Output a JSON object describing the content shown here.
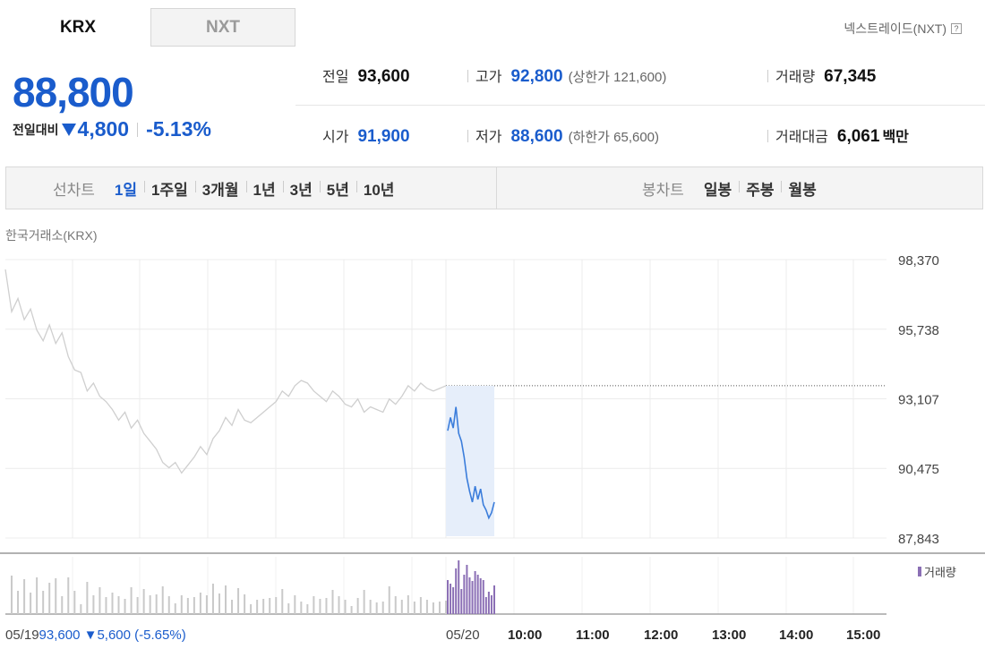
{
  "tabs": [
    {
      "label": "KRX",
      "active": true
    },
    {
      "label": "NXT",
      "active": false
    }
  ],
  "nxt_link": {
    "label": "넥스트레이드(NXT)",
    "help_icon": "help-icon"
  },
  "price": {
    "current": "88,800",
    "change_label": "전일대비",
    "change_value": "4,800",
    "change_pct": "-5.13%",
    "direction": "down"
  },
  "stats": {
    "prev_close": {
      "label": "전일",
      "value": "93,600"
    },
    "high": {
      "label": "고가",
      "value": "92,800",
      "extra": "(상한가 121,600)"
    },
    "volume": {
      "label": "거래량",
      "value": "67,345"
    },
    "open": {
      "label": "시가",
      "value": "91,900"
    },
    "low": {
      "label": "저가",
      "value": "88,600",
      "extra": "(하한가 65,600)"
    },
    "trade_amount": {
      "label": "거래대금",
      "value": "6,061",
      "unit": "백만"
    }
  },
  "toolbar": {
    "line_chart": {
      "title": "선차트",
      "items": [
        "1일",
        "1주일",
        "3개월",
        "1년",
        "3년",
        "5년",
        "10년"
      ],
      "active": "1일"
    },
    "candle_chart": {
      "title": "봉차트",
      "items": [
        "일봉",
        "주봉",
        "월봉"
      ]
    }
  },
  "exchange_label": "한국거래소(KRX)",
  "colors": {
    "blue": "#1a5ccc",
    "line_today": "#3b7ddb",
    "line_prev": "#cfcfcf",
    "volume_today": "#8b6fb5",
    "volume_prev": "#c9c9c9",
    "fill_today": "#e6eefa"
  },
  "chart_data": {
    "type": "line",
    "y_ticks": [
      "98,370",
      "95,738",
      "93,107",
      "90,475",
      "87,843"
    ],
    "ylim": [
      87843,
      98370
    ],
    "reference_price": 93600,
    "x_ticks": [
      "05/19",
      "05/20",
      "10:00",
      "11:00",
      "12:00",
      "13:00",
      "14:00",
      "15:00"
    ],
    "prev_day_footer": {
      "close": "93,600",
      "change": "5,600",
      "change_pct": "(-5.65%)",
      "direction": "down"
    },
    "legend": "거래량",
    "grid": true,
    "series": [
      {
        "date": "05/19",
        "values": [
          98000,
          96400,
          96900,
          96100,
          96500,
          95700,
          95300,
          95900,
          95200,
          95600,
          94700,
          94200,
          94100,
          93400,
          93700,
          93200,
          93000,
          92700,
          92300,
          92600,
          92000,
          92300,
          91800,
          91500,
          91200,
          90700,
          90500,
          90700,
          90300,
          90600,
          90900,
          91300,
          91000,
          91600,
          91900,
          92400,
          92100,
          92700,
          92300,
          92200,
          92400,
          92600,
          92800,
          93000,
          93400,
          93200,
          93600,
          93800,
          93700,
          93400,
          93200,
          93000,
          93400,
          93200,
          92900,
          92800,
          93100,
          92600,
          92800,
          92700,
          92600,
          93100,
          92900,
          93200,
          93600,
          93400,
          93700,
          93500,
          93400,
          93500,
          93600
        ]
      },
      {
        "date": "05/20",
        "values": [
          91900,
          92400,
          92000,
          92800,
          91800,
          91500,
          90900,
          90100,
          89600,
          89200,
          89800,
          89300,
          89700,
          89100,
          88900,
          88600,
          88800,
          89200
        ]
      }
    ]
  }
}
